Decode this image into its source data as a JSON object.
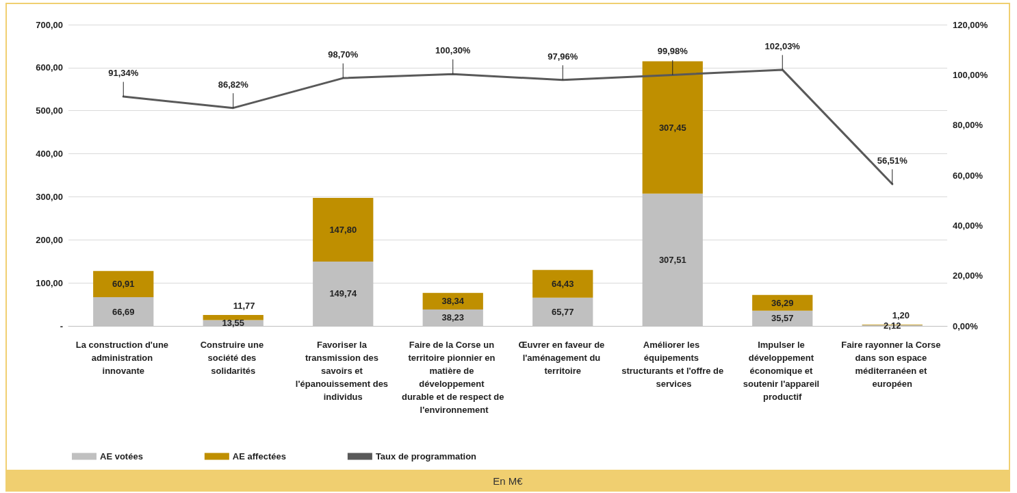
{
  "chart_data": {
    "type": "bar",
    "stacked": true,
    "categories": [
      "La construction d'une administration innovante",
      "Construire une société des solidarités",
      "Favoriser la transmission des savoirs et l'épanouissement des individus",
      "Faire de la Corse un territoire pionnier en matière de développement durable et de respect de l'environnement",
      "Œuvrer en faveur de l'aménagement du territoire",
      "Améliorer les équipements structurants et l'offre de services",
      "Impulser le développement économique et soutenir l'appareil productif",
      "Faire rayonner la Corse dans son espace méditerranéen et européen"
    ],
    "series": [
      {
        "name": "AE votées",
        "color": "#c0c0c0",
        "values": [
          66.69,
          13.55,
          149.74,
          38.23,
          65.77,
          307.51,
          35.57,
          2.12
        ],
        "value_labels": [
          "66,69",
          "13,55",
          "149,74",
          "38,23",
          "65,77",
          "307,51",
          "35,57",
          "2,12"
        ]
      },
      {
        "name": "AE affectées",
        "color": "#bf8f00",
        "values": [
          60.91,
          11.77,
          147.8,
          38.34,
          64.43,
          307.45,
          36.29,
          1.2
        ],
        "value_labels": [
          "60,91",
          "11,77",
          "147,80",
          "38,34",
          "64,43",
          "307,45",
          "36,29",
          "1,20"
        ]
      },
      {
        "name": "Taux de programmation",
        "type": "line",
        "axis": "y2",
        "color": "#595959",
        "values": [
          91.34,
          86.82,
          98.7,
          100.3,
          97.96,
          99.98,
          102.03,
          56.51
        ],
        "value_labels": [
          "91,34%",
          "86,82%",
          "98,70%",
          "100,30%",
          "97,96%",
          "99,98%",
          "102,03%",
          "56,51%"
        ]
      }
    ],
    "ylim": [
      0,
      700
    ],
    "yticks": [
      {
        "value": 0,
        "label": "-"
      },
      {
        "value": 100,
        "label": "100,00"
      },
      {
        "value": 200,
        "label": "200,00"
      },
      {
        "value": 300,
        "label": "300,00"
      },
      {
        "value": 400,
        "label": "400,00"
      },
      {
        "value": 500,
        "label": "500,00"
      },
      {
        "value": 600,
        "label": "600,00"
      },
      {
        "value": 700,
        "label": "700,00"
      }
    ],
    "y2lim": [
      0,
      120
    ],
    "y2ticks": [
      {
        "value": 0,
        "label": "0,00%"
      },
      {
        "value": 20,
        "label": "20,00%"
      },
      {
        "value": 40,
        "label": "40,00%"
      },
      {
        "value": 60,
        "label": "60,00%"
      },
      {
        "value": 80,
        "label": "80,00%"
      },
      {
        "value": 100,
        "label": "100,00%"
      },
      {
        "value": 120,
        "label": "120,00%"
      }
    ],
    "grid": "y",
    "legend": "bottom left",
    "marker": "none",
    "line_style": "solid",
    "annotations": [
      "En M€"
    ]
  }
}
